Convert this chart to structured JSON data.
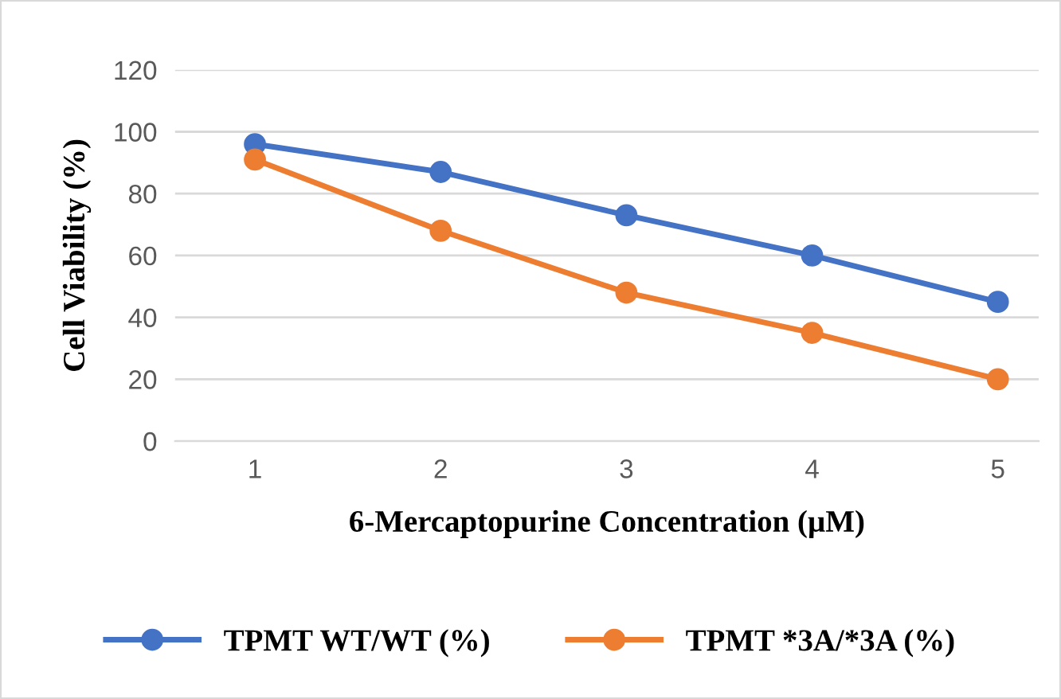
{
  "chart_data": {
    "type": "line",
    "xlabel": "6-Mercaptopurine Concentration (µM)",
    "ylabel": "Cell Viability (%)",
    "categories": [
      "1",
      "2",
      "3",
      "4",
      "5"
    ],
    "series": [
      {
        "name": "TPMT WT/WT (%)",
        "color": "#4472c4",
        "values": [
          96,
          87,
          73,
          60,
          45
        ]
      },
      {
        "name": "TPMT *3A/*3A (%)",
        "color": "#ed7d31",
        "values": [
          91,
          68,
          48,
          35,
          20
        ]
      }
    ],
    "ylim": [
      0,
      120
    ],
    "yticks": [
      0,
      20,
      40,
      60,
      80,
      100,
      120
    ],
    "grid": "y",
    "legend": "bottom",
    "marker": "circle",
    "line_style": "solid"
  }
}
